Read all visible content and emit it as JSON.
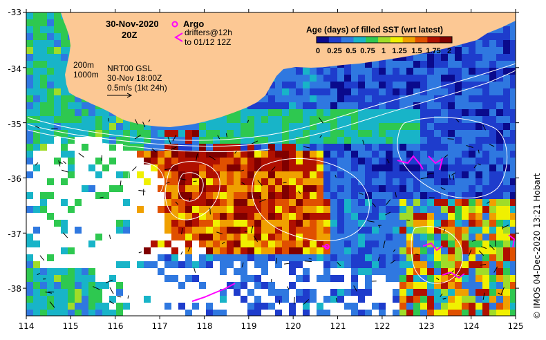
{
  "map": {
    "date_label": "30-Nov-2020",
    "time_label": "20Z",
    "lon_ticks": [
      "114",
      "115",
      "116",
      "117",
      "118",
      "119",
      "120",
      "121",
      "122",
      "123",
      "124",
      "125"
    ],
    "lat_ticks": [
      "-33",
      "-34",
      "-35",
      "-36",
      "-37",
      "-38"
    ],
    "lon_range": [
      114,
      125
    ],
    "lat_range": [
      -38.5,
      -33
    ],
    "land_color": "#fcc894",
    "ocean_bg": "#1a1aa8",
    "nodata_color": "#ffffff"
  },
  "legend": {
    "argo_label": "Argo",
    "drifters_line1": "drifters@12h",
    "drifters_line2": "to 01/12 12Z",
    "argo_color": "#ff00ff",
    "drifter_color": "#ff00ff"
  },
  "contours": {
    "iso_200": "200m",
    "iso_1000": "1000m"
  },
  "currents": {
    "source": "NRT00 GSL",
    "time": "30-Nov 18:00Z",
    "scale": "0.5m/s (1kt 24h)"
  },
  "colorbar": {
    "title": "Age (days) of filled SST (wrt latest)",
    "ticks": [
      "0",
      "0.25",
      "0.5",
      "0.75",
      "1",
      "1.25",
      "1.5",
      "1.75",
      "2"
    ],
    "colors": [
      "#0a0a8c",
      "#1e3ccc",
      "#2f78e0",
      "#18b4c8",
      "#2ec850",
      "#a0dc28",
      "#f0f000",
      "#f0a000",
      "#e05000",
      "#b01000",
      "#800000"
    ]
  },
  "credit": "© IMOS 04-Dec-2020 13:21 Hobart"
}
